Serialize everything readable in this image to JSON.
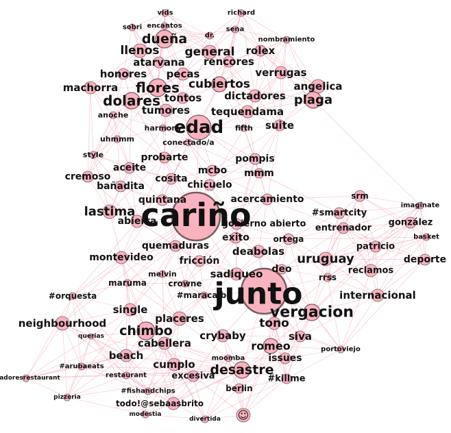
{
  "graph": {
    "colors": {
      "node_fill": "#f9b3bf",
      "node_stroke": "#7a5a60",
      "edge": "#f4a6b4",
      "label": "#111111"
    },
    "nodes": [
      {
        "id": "vids",
        "label": "vids"
      },
      {
        "id": "richard",
        "label": "richard"
      },
      {
        "id": "sobri",
        "label": "sobri"
      },
      {
        "id": "encantos",
        "label": "encantos"
      },
      {
        "id": "dr",
        "label": "dr."
      },
      {
        "id": "sena",
        "label": "sena"
      },
      {
        "id": "nombramiento",
        "label": "nombramiento"
      },
      {
        "id": "duena",
        "label": "dueña"
      },
      {
        "id": "general",
        "label": "general"
      },
      {
        "id": "llenos",
        "label": "llenos"
      },
      {
        "id": "rolex",
        "label": "rolex"
      },
      {
        "id": "atarvana",
        "label": "atarvana"
      },
      {
        "id": "rencores",
        "label": "rencores"
      },
      {
        "id": "honores",
        "label": "honores"
      },
      {
        "id": "pecas",
        "label": "pecas"
      },
      {
        "id": "verrugas",
        "label": "verrugas"
      },
      {
        "id": "machorra",
        "label": "machorra"
      },
      {
        "id": "flores",
        "label": "flores"
      },
      {
        "id": "cubiertos",
        "label": "cubiertos"
      },
      {
        "id": "angelica",
        "label": "angelica"
      },
      {
        "id": "dolares",
        "label": "dolares"
      },
      {
        "id": "tontos",
        "label": "tontos"
      },
      {
        "id": "dictadores",
        "label": "dictadores"
      },
      {
        "id": "plaga",
        "label": "plaga"
      },
      {
        "id": "tumores",
        "label": "tumores"
      },
      {
        "id": "tequendama",
        "label": "tequendama"
      },
      {
        "id": "anoche",
        "label": "anoche"
      },
      {
        "id": "edad",
        "label": "edad"
      },
      {
        "id": "suite",
        "label": "suite"
      },
      {
        "id": "harmony",
        "label": "harmony"
      },
      {
        "id": "fifth",
        "label": "fifth"
      },
      {
        "id": "uhmmm",
        "label": "uhmmm"
      },
      {
        "id": "conectado",
        "label": "conectado/a"
      },
      {
        "id": "style",
        "label": "style"
      },
      {
        "id": "probarte",
        "label": "probarte"
      },
      {
        "id": "pompis",
        "label": "pompis"
      },
      {
        "id": "aceite",
        "label": "aceite"
      },
      {
        "id": "mcbo",
        "label": "mcbo"
      },
      {
        "id": "mmm",
        "label": "mmm"
      },
      {
        "id": "cremoso",
        "label": "cremoso"
      },
      {
        "id": "cosita",
        "label": "cosita"
      },
      {
        "id": "banadita",
        "label": "bañadita"
      },
      {
        "id": "chicuelo",
        "label": "chicuelo"
      },
      {
        "id": "srm",
        "label": "srm"
      },
      {
        "id": "imaginate",
        "label": "imaginate"
      },
      {
        "id": "quintana",
        "label": "quintana"
      },
      {
        "id": "acercamiento",
        "label": "acercamiento"
      },
      {
        "id": "lastima",
        "label": "lastima"
      },
      {
        "id": "carino",
        "label": "cariño"
      },
      {
        "id": "smartcity",
        "label": "#smartcity"
      },
      {
        "id": "gonzalez",
        "label": "gonzález"
      },
      {
        "id": "abierta",
        "label": "abierta"
      },
      {
        "id": "gabierto",
        "label": "gobierno abierto"
      },
      {
        "id": "entrenador",
        "label": "entrenador"
      },
      {
        "id": "basket",
        "label": "basket"
      },
      {
        "id": "exito",
        "label": "exito"
      },
      {
        "id": "ortega",
        "label": "ortega"
      },
      {
        "id": "quemaduras",
        "label": "quemaduras"
      },
      {
        "id": "patricio",
        "label": "patricio"
      },
      {
        "id": "deabolas",
        "label": "deabolas"
      },
      {
        "id": "montevideo",
        "label": "montevideo"
      },
      {
        "id": "uruguay",
        "label": "uruguay"
      },
      {
        "id": "friccion",
        "label": "fricción"
      },
      {
        "id": "deporte",
        "label": "deporte"
      },
      {
        "id": "deo",
        "label": "deo"
      },
      {
        "id": "melvin",
        "label": "melvin"
      },
      {
        "id": "reclamos",
        "label": "reclamos"
      },
      {
        "id": "sadiqueo",
        "label": "sadiqueo"
      },
      {
        "id": "rrss",
        "label": "rrss"
      },
      {
        "id": "maruma",
        "label": "maruma"
      },
      {
        "id": "crowne",
        "label": "crowne"
      },
      {
        "id": "junto",
        "label": "junto"
      },
      {
        "id": "orquesta",
        "label": "#orquesta"
      },
      {
        "id": "maracaibo",
        "label": "#maracaibo"
      },
      {
        "id": "internacional",
        "label": "internacional"
      },
      {
        "id": "single",
        "label": "single"
      },
      {
        "id": "vergacion",
        "label": "vergacion"
      },
      {
        "id": "placeres",
        "label": "placeres"
      },
      {
        "id": "neighbourhood",
        "label": "neighbourhood"
      },
      {
        "id": "tono",
        "label": "tono"
      },
      {
        "id": "chimbo",
        "label": "chimbo"
      },
      {
        "id": "querias",
        "label": "querias"
      },
      {
        "id": "crybaby",
        "label": "crybaby"
      },
      {
        "id": "siva",
        "label": "siva"
      },
      {
        "id": "cabellera",
        "label": "cabellera"
      },
      {
        "id": "romeo",
        "label": "romeo"
      },
      {
        "id": "beach",
        "label": "beach"
      },
      {
        "id": "portoviejo",
        "label": "portoviejo"
      },
      {
        "id": "issues",
        "label": "issues"
      },
      {
        "id": "arubaeats",
        "label": "#arubaeats"
      },
      {
        "id": "cumplo",
        "label": "cumplo"
      },
      {
        "id": "moomba",
        "label": "moomba"
      },
      {
        "id": "desastre",
        "label": "desastre"
      },
      {
        "id": "restaurant",
        "label": "restaurant"
      },
      {
        "id": "excesiva",
        "label": "excesiva"
      },
      {
        "id": "killme",
        "label": "#killme"
      },
      {
        "id": "pradores",
        "label": "pradoresrestaurant"
      },
      {
        "id": "fishandchips",
        "label": "#fishandchips"
      },
      {
        "id": "berlin",
        "label": "berlin"
      },
      {
        "id": "pizzeria",
        "label": "pizzeria"
      },
      {
        "id": "sebaas",
        "label": "todo!@sebaasbrito"
      },
      {
        "id": "modestia",
        "label": "modestia"
      },
      {
        "id": "divertida",
        "label": "divertida"
      },
      {
        "id": "smiley",
        "label": "☺"
      }
    ]
  }
}
